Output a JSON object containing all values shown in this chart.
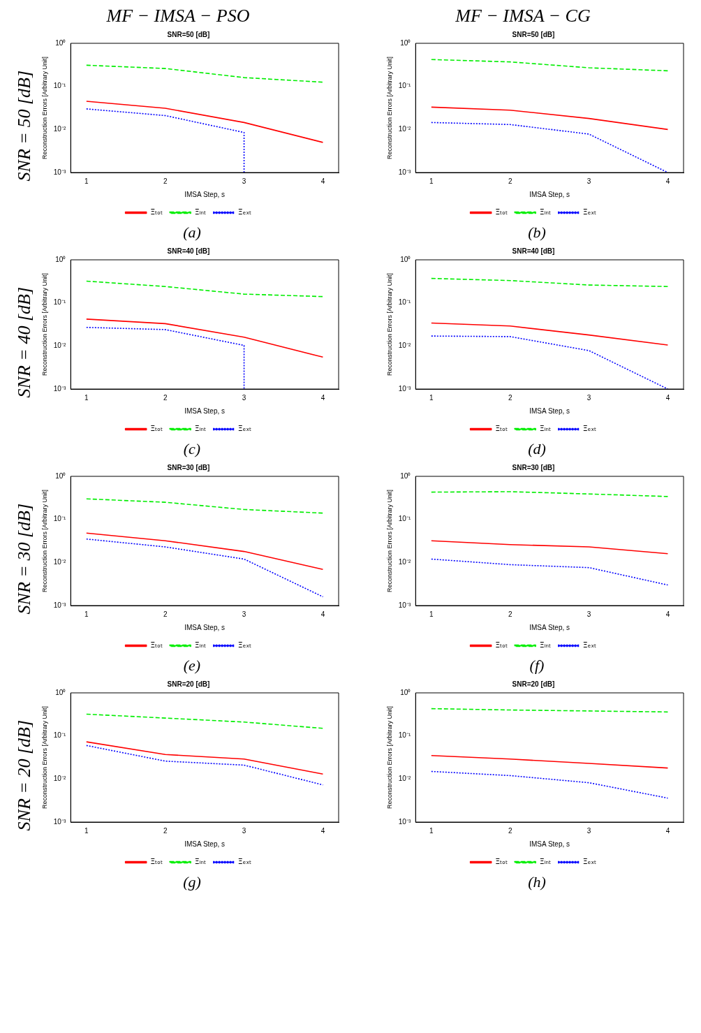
{
  "chart_data": [
    {
      "type": "line",
      "title": "SNR=50 [dB]",
      "subtitle": "MF − IMSA − PSO",
      "xlabel": "IMSA Step, s",
      "ylabel": "Reconstruction Errors [Arbitrary Unit]",
      "annotations": [
        "SNR = 50 [dB]",
        "(a)"
      ],
      "log": "y",
      "xlim": [
        0.8,
        4.2
      ],
      "xticks": [
        1,
        2,
        3,
        4
      ],
      "ylim": [
        0.001,
        1
      ],
      "yticks": [
        {
          "value": 0.001,
          "label": "10⁻³"
        },
        {
          "value": 0.01,
          "label": "10⁻²"
        },
        {
          "value": 0.1,
          "label": "10⁻¹"
        },
        {
          "value": 1,
          "label": "10⁰"
        }
      ],
      "grid": false,
      "legend": "bottom",
      "marker": "none",
      "x": [
        1,
        2,
        3,
        4
      ],
      "series": [
        {
          "name": "Ξₜₒₜ",
          "color": "#ff0000",
          "line_style": "solid",
          "values": [
            0.045,
            0.031,
            0.0145,
            0.005
          ]
        },
        {
          "name": "Ξᵢₙₜ",
          "color": "#00ee00",
          "line_style": "dashed",
          "values": [
            0.31,
            0.26,
            0.16,
            0.125
          ]
        },
        {
          "name": "Ξₑₓₜ",
          "color": "#0000ff",
          "line_style": "dotted",
          "x": [
            1,
            2,
            3,
            3
          ],
          "values": [
            0.03,
            0.021,
            0.0085,
            0.001
          ]
        }
      ]
    },
    {
      "type": "line",
      "title": "SNR=50 [dB]",
      "subtitle": "MF − IMSA − CG",
      "xlabel": "IMSA Step, s",
      "ylabel": "Reconstruction Errors [Arbitrary Unit]",
      "annotations": [
        "(b)"
      ],
      "log": "y",
      "xlim": [
        0.8,
        4.2
      ],
      "xticks": [
        1,
        2,
        3,
        4
      ],
      "ylim": [
        0.001,
        1
      ],
      "yticks": [
        {
          "value": 0.001,
          "label": "10⁻³"
        },
        {
          "value": 0.01,
          "label": "10⁻²"
        },
        {
          "value": 0.1,
          "label": "10⁻¹"
        },
        {
          "value": 1,
          "label": "10⁰"
        }
      ],
      "grid": false,
      "legend": "bottom",
      "marker": "none",
      "x": [
        1,
        2,
        3,
        4
      ],
      "series": [
        {
          "name": "Ξₜₒₜ",
          "color": "#ff0000",
          "line_style": "solid",
          "values": [
            0.033,
            0.028,
            0.018,
            0.01
          ]
        },
        {
          "name": "Ξᵢₙₜ",
          "color": "#00ee00",
          "line_style": "dashed",
          "values": [
            0.42,
            0.37,
            0.27,
            0.23
          ]
        },
        {
          "name": "Ξₑₓₜ",
          "color": "#0000ff",
          "line_style": "dotted",
          "values": [
            0.0145,
            0.013,
            0.0078,
            0.001
          ]
        }
      ]
    },
    {
      "type": "line",
      "title": "SNR=40 [dB]",
      "xlabel": "IMSA Step, s",
      "ylabel": "Reconstruction Errors [Arbitrary Unit]",
      "annotations": [
        "SNR = 40 [dB]",
        "(c)"
      ],
      "log": "y",
      "xlim": [
        0.8,
        4.2
      ],
      "xticks": [
        1,
        2,
        3,
        4
      ],
      "ylim": [
        0.001,
        1
      ],
      "yticks": [
        {
          "value": 0.001,
          "label": "10⁻³"
        },
        {
          "value": 0.01,
          "label": "10⁻²"
        },
        {
          "value": 0.1,
          "label": "10⁻¹"
        },
        {
          "value": 1,
          "label": "10⁰"
        }
      ],
      "grid": false,
      "legend": "bottom",
      "marker": "none",
      "x": [
        1,
        2,
        3,
        4
      ],
      "series": [
        {
          "name": "Ξₜₒₜ",
          "color": "#ff0000",
          "line_style": "solid",
          "values": [
            0.042,
            0.033,
            0.016,
            0.0055
          ]
        },
        {
          "name": "Ξᵢₙₜ",
          "color": "#00ee00",
          "line_style": "dashed",
          "values": [
            0.32,
            0.24,
            0.16,
            0.14
          ]
        },
        {
          "name": "Ξₑₓₜ",
          "color": "#0000ff",
          "line_style": "dotted",
          "x": [
            1,
            2,
            3,
            3
          ],
          "values": [
            0.027,
            0.024,
            0.0103,
            0.001
          ]
        }
      ]
    },
    {
      "type": "line",
      "title": "SNR=40 [dB]",
      "xlabel": "IMSA Step, s",
      "ylabel": "Reconstruction Errors [Arbitrary Unit]",
      "annotations": [
        "(d)"
      ],
      "log": "y",
      "xlim": [
        0.8,
        4.2
      ],
      "xticks": [
        1,
        2,
        3,
        4
      ],
      "ylim": [
        0.001,
        1
      ],
      "yticks": [
        {
          "value": 0.001,
          "label": "10⁻³"
        },
        {
          "value": 0.01,
          "label": "10⁻²"
        },
        {
          "value": 0.1,
          "label": "10⁻¹"
        },
        {
          "value": 1,
          "label": "10⁰"
        }
      ],
      "grid": false,
      "legend": "bottom",
      "marker": "none",
      "x": [
        1,
        2,
        3,
        4
      ],
      "series": [
        {
          "name": "Ξₜₒₜ",
          "color": "#ff0000",
          "line_style": "solid",
          "values": [
            0.034,
            0.029,
            0.018,
            0.0105
          ]
        },
        {
          "name": "Ξᵢₙₜ",
          "color": "#00ee00",
          "line_style": "dashed",
          "values": [
            0.37,
            0.33,
            0.26,
            0.24
          ]
        },
        {
          "name": "Ξₑₓₜ",
          "color": "#0000ff",
          "line_style": "dotted",
          "values": [
            0.017,
            0.0165,
            0.0078,
            0.001
          ]
        }
      ]
    },
    {
      "type": "line",
      "title": "SNR=30 [dB]",
      "xlabel": "IMSA Step, s",
      "ylabel": "Reconstruction Errors [Arbitrary Unit]",
      "annotations": [
        "SNR = 30 [dB]",
        "(e)"
      ],
      "log": "y",
      "xlim": [
        0.8,
        4.2
      ],
      "xticks": [
        1,
        2,
        3,
        4
      ],
      "ylim": [
        0.001,
        1
      ],
      "yticks": [
        {
          "value": 0.001,
          "label": "10⁻³"
        },
        {
          "value": 0.01,
          "label": "10⁻²"
        },
        {
          "value": 0.1,
          "label": "10⁻¹"
        },
        {
          "value": 1,
          "label": "10⁰"
        }
      ],
      "grid": false,
      "legend": "bottom",
      "marker": "none",
      "x": [
        1,
        2,
        3,
        4
      ],
      "series": [
        {
          "name": "Ξₜₒₜ",
          "color": "#ff0000",
          "line_style": "solid",
          "values": [
            0.048,
            0.032,
            0.018,
            0.0069
          ]
        },
        {
          "name": "Ξᵢₙₜ",
          "color": "#00ee00",
          "line_style": "dashed",
          "values": [
            0.3,
            0.25,
            0.17,
            0.14
          ]
        },
        {
          "name": "Ξₑₓₜ",
          "color": "#0000ff",
          "line_style": "dotted",
          "values": [
            0.035,
            0.023,
            0.012,
            0.0016
          ]
        }
      ]
    },
    {
      "type": "line",
      "title": "SNR=30 [dB]",
      "xlabel": "IMSA Step, s",
      "ylabel": "Reconstruction Errors [Arbitrary Unit]",
      "annotations": [
        "(f)"
      ],
      "log": "y",
      "xlim": [
        0.8,
        4.2
      ],
      "xticks": [
        1,
        2,
        3,
        4
      ],
      "ylim": [
        0.001,
        1
      ],
      "yticks": [
        {
          "value": 0.001,
          "label": "10⁻³"
        },
        {
          "value": 0.01,
          "label": "10⁻²"
        },
        {
          "value": 0.1,
          "label": "10⁻¹"
        },
        {
          "value": 1,
          "label": "10⁰"
        }
      ],
      "grid": false,
      "legend": "bottom",
      "marker": "none",
      "x": [
        1,
        2,
        3,
        4
      ],
      "series": [
        {
          "name": "Ξₜₒₜ",
          "color": "#ff0000",
          "line_style": "solid",
          "values": [
            0.032,
            0.026,
            0.023,
            0.016
          ]
        },
        {
          "name": "Ξᵢₙₜ",
          "color": "#00ee00",
          "line_style": "dashed",
          "values": [
            0.43,
            0.44,
            0.39,
            0.34
          ]
        },
        {
          "name": "Ξₑₓₜ",
          "color": "#0000ff",
          "line_style": "dotted",
          "values": [
            0.012,
            0.0089,
            0.0076,
            0.003
          ]
        }
      ]
    },
    {
      "type": "line",
      "title": "SNR=20 [dB]",
      "xlabel": "IMSA Step, s",
      "ylabel": "Reconstruction Errors [Arbitrary Unit]",
      "annotations": [
        "SNR = 20 [dB]",
        "(g)"
      ],
      "log": "y",
      "xlim": [
        0.8,
        4.2
      ],
      "xticks": [
        1,
        2,
        3,
        4
      ],
      "ylim": [
        0.001,
        1
      ],
      "yticks": [
        {
          "value": 0.001,
          "label": "10⁻³"
        },
        {
          "value": 0.01,
          "label": "10⁻²"
        },
        {
          "value": 0.1,
          "label": "10⁻¹"
        },
        {
          "value": 1,
          "label": "10⁰"
        }
      ],
      "grid": false,
      "legend": "bottom",
      "marker": "none",
      "x": [
        1,
        2,
        3,
        4
      ],
      "series": [
        {
          "name": "Ξₜₒₜ",
          "color": "#ff0000",
          "line_style": "solid",
          "values": [
            0.073,
            0.037,
            0.029,
            0.013
          ]
        },
        {
          "name": "Ξᵢₙₜ",
          "color": "#00ee00",
          "line_style": "dashed",
          "values": [
            0.32,
            0.26,
            0.21,
            0.15
          ]
        },
        {
          "name": "Ξₑₓₜ",
          "color": "#0000ff",
          "line_style": "dotted",
          "values": [
            0.06,
            0.026,
            0.021,
            0.0073
          ]
        }
      ]
    },
    {
      "type": "line",
      "title": "SNR=20 [dB]",
      "xlabel": "IMSA Step, s",
      "ylabel": "Reconstruction Errors [Arbitrary Unit]",
      "annotations": [
        "(h)"
      ],
      "log": "y",
      "xlim": [
        0.8,
        4.2
      ],
      "xticks": [
        1,
        2,
        3,
        4
      ],
      "ylim": [
        0.001,
        1
      ],
      "yticks": [
        {
          "value": 0.001,
          "label": "10⁻³"
        },
        {
          "value": 0.01,
          "label": "10⁻²"
        },
        {
          "value": 0.1,
          "label": "10⁻¹"
        },
        {
          "value": 1,
          "label": "10⁰"
        }
      ],
      "grid": false,
      "legend": "bottom",
      "marker": "none",
      "x": [
        1,
        2,
        3,
        4
      ],
      "series": [
        {
          "name": "Ξₜₒₜ",
          "color": "#ff0000",
          "line_style": "solid",
          "values": [
            0.035,
            0.029,
            0.023,
            0.018
          ]
        },
        {
          "name": "Ξᵢₙₜ",
          "color": "#00ee00",
          "line_style": "dashed",
          "values": [
            0.43,
            0.4,
            0.38,
            0.36
          ]
        },
        {
          "name": "Ξₑₓₜ",
          "color": "#0000ff",
          "line_style": "dotted",
          "values": [
            0.015,
            0.012,
            0.0082,
            0.0036
          ]
        }
      ]
    }
  ]
}
